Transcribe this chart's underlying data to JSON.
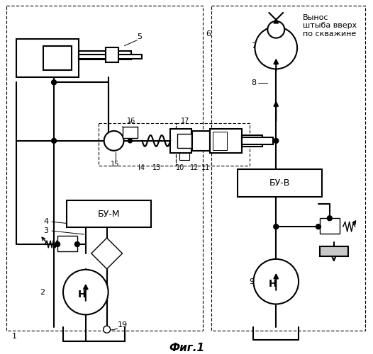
{
  "fig_title": "Фиг.1",
  "label_bum": "БУ-М",
  "label_buv": "БУ-В",
  "label_h": "Н",
  "annotation": "Вынос\nштыба вверх\nпо скважине",
  "col": "#000000",
  "lw": 1.5,
  "lwt": 1.0,
  "fs": 8,
  "fsb": 9
}
